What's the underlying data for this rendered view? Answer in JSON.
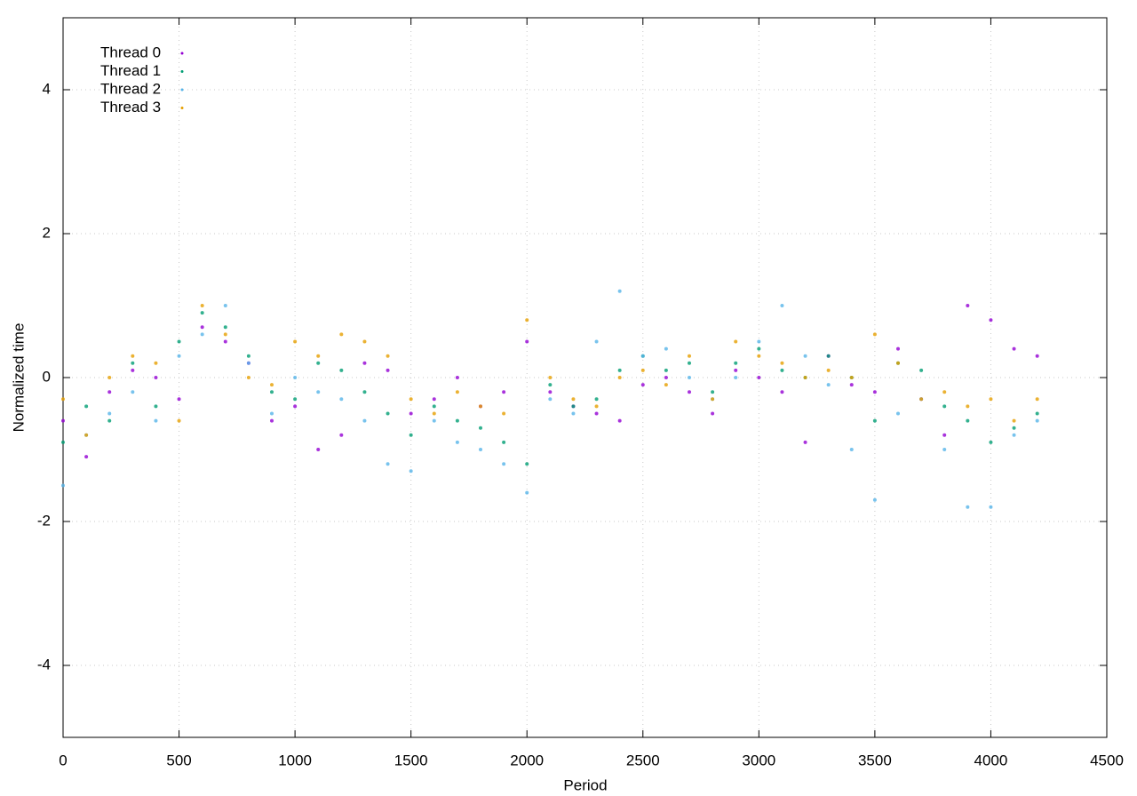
{
  "chart_data": {
    "type": "scatter",
    "x_label": "Period",
    "y_label": "Normalized time",
    "xlim": [
      0,
      4500
    ],
    "ylim": [
      -5,
      5
    ],
    "xticks": [
      0,
      500,
      1000,
      1500,
      2000,
      2500,
      3000,
      3500,
      4000,
      4500
    ],
    "yticks": [
      -4,
      -2,
      0,
      2,
      4
    ],
    "grid": true,
    "legend": "upper-left",
    "x": [
      0,
      100,
      200,
      300,
      400,
      500,
      600,
      700,
      800,
      900,
      1000,
      1100,
      1200,
      1300,
      1400,
      1500,
      1600,
      1700,
      1800,
      1900,
      2000,
      2100,
      2200,
      2300,
      2400,
      2500,
      2600,
      2700,
      2800,
      2900,
      3000,
      3100,
      3200,
      3300,
      3400,
      3500,
      3600,
      3700,
      3800,
      3900,
      4000,
      4100,
      4200
    ],
    "series": [
      {
        "name": "Thread 0",
        "color": "#9400d3",
        "values": [
          -0.6,
          -1.1,
          -0.2,
          0.1,
          0.0,
          -0.3,
          0.7,
          0.5,
          0.2,
          -0.6,
          -0.4,
          -1.0,
          -0.8,
          0.2,
          0.1,
          -0.5,
          -0.3,
          0.0,
          -0.4,
          -0.2,
          0.5,
          -0.2,
          -0.4,
          -0.5,
          -0.6,
          -0.1,
          0.0,
          -0.2,
          -0.5,
          0.1,
          0.0,
          -0.2,
          -0.9,
          0.3,
          -0.1,
          -0.2,
          0.4,
          -0.3,
          -0.8,
          1.0,
          0.8,
          0.4,
          0.3
        ]
      },
      {
        "name": "Thread 1",
        "color": "#009e73",
        "values": [
          -0.9,
          -0.4,
          -0.6,
          0.2,
          -0.4,
          0.5,
          0.9,
          0.7,
          0.3,
          -0.2,
          -0.3,
          0.2,
          0.1,
          -0.2,
          -0.5,
          -0.8,
          -0.4,
          -0.6,
          -0.7,
          -0.9,
          -1.2,
          -0.1,
          -0.4,
          -0.3,
          0.1,
          0.3,
          0.1,
          0.2,
          -0.2,
          0.2,
          0.4,
          0.1,
          0.0,
          0.3,
          0.0,
          -0.6,
          0.2,
          0.1,
          -0.4,
          -0.6,
          -0.9,
          -0.7,
          -0.5
        ]
      },
      {
        "name": "Thread 2",
        "color": "#56b4e9",
        "values": [
          -1.5,
          -0.8,
          -0.5,
          -0.2,
          -0.6,
          0.3,
          0.6,
          1.0,
          0.2,
          -0.5,
          0.0,
          -0.2,
          -0.3,
          -0.6,
          -1.2,
          -1.3,
          -0.6,
          -0.9,
          -1.0,
          -1.2,
          -1.6,
          -0.3,
          -0.5,
          0.5,
          1.2,
          0.3,
          0.4,
          0.0,
          -0.3,
          0.0,
          0.5,
          1.0,
          0.3,
          -0.1,
          -1.0,
          -1.7,
          -0.5,
          -0.3,
          -1.0,
          -1.8,
          -1.8,
          -0.8,
          -0.6
        ]
      },
      {
        "name": "Thread 3",
        "color": "#e69f00",
        "values": [
          -0.3,
          -0.8,
          0.0,
          0.3,
          0.2,
          -0.6,
          1.0,
          0.6,
          0.0,
          -0.1,
          0.5,
          0.3,
          0.6,
          0.5,
          0.3,
          -0.3,
          -0.5,
          -0.2,
          -0.4,
          -0.5,
          0.8,
          0.0,
          -0.3,
          -0.4,
          0.0,
          0.1,
          -0.1,
          0.3,
          -0.3,
          0.5,
          0.3,
          0.2,
          0.0,
          0.1,
          0.0,
          0.6,
          0.2,
          -0.3,
          -0.2,
          -0.4,
          -0.3,
          -0.6,
          -0.3
        ]
      }
    ]
  }
}
